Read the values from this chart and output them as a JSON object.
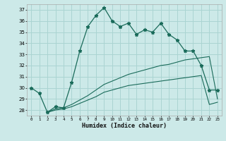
{
  "xlabel": "Humidex (Indice chaleur)",
  "bg_color": "#cce9e8",
  "grid_color": "#aad4d2",
  "line_color": "#1a6b5a",
  "xlim": [
    -0.5,
    23.5
  ],
  "ylim": [
    27.5,
    37.5
  ],
  "yticks": [
    28,
    29,
    30,
    31,
    32,
    33,
    34,
    35,
    36,
    37
  ],
  "xticks": [
    0,
    1,
    2,
    3,
    4,
    5,
    6,
    7,
    8,
    9,
    10,
    11,
    12,
    13,
    14,
    15,
    16,
    17,
    18,
    19,
    20,
    21,
    22,
    23
  ],
  "series1_x": [
    0,
    1,
    2,
    3,
    4,
    5,
    6,
    7,
    8,
    9,
    10,
    11,
    12,
    13,
    14,
    15,
    16,
    17,
    18,
    19,
    20,
    21,
    22,
    23
  ],
  "series1_y": [
    30.0,
    29.5,
    27.8,
    28.3,
    28.2,
    30.5,
    33.3,
    35.5,
    36.5,
    37.2,
    36.0,
    35.5,
    35.8,
    34.8,
    35.2,
    35.0,
    35.8,
    34.8,
    34.3,
    33.3,
    33.3,
    32.0,
    29.8,
    29.8
  ],
  "series2_x": [
    2,
    3,
    4,
    5,
    6,
    7,
    8,
    9,
    10,
    11,
    12,
    13,
    14,
    15,
    16,
    17,
    18,
    19,
    20,
    21,
    22,
    23
  ],
  "series2_y": [
    27.8,
    28.1,
    28.2,
    28.5,
    28.9,
    29.3,
    29.8,
    30.3,
    30.6,
    30.9,
    31.2,
    31.4,
    31.6,
    31.8,
    32.0,
    32.1,
    32.3,
    32.5,
    32.6,
    32.7,
    32.8,
    29.0
  ],
  "series3_x": [
    2,
    3,
    4,
    5,
    6,
    7,
    8,
    9,
    10,
    11,
    12,
    13,
    14,
    15,
    16,
    17,
    18,
    19,
    20,
    21,
    22,
    23
  ],
  "series3_y": [
    27.8,
    28.0,
    28.1,
    28.3,
    28.6,
    28.9,
    29.2,
    29.6,
    29.8,
    30.0,
    30.2,
    30.3,
    30.4,
    30.5,
    30.6,
    30.7,
    30.8,
    30.9,
    31.0,
    31.1,
    28.5,
    28.7
  ]
}
